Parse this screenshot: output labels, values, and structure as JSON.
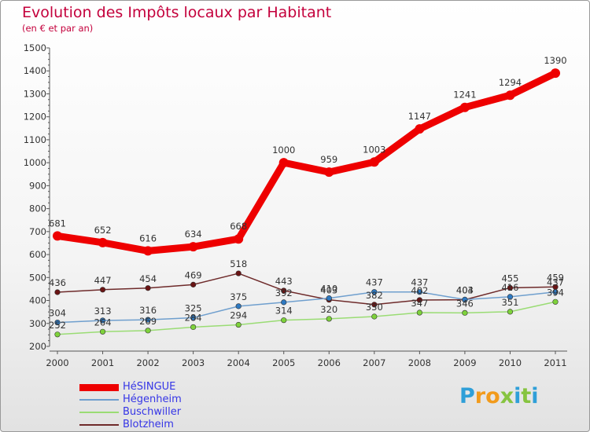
{
  "title": "Evolution des Impôts locaux par Habitant",
  "subtitle": "(en € et par an)",
  "brand": "Proxiti",
  "chart_data": {
    "type": "line",
    "title": "Evolution des Impôts locaux par Habitant",
    "subtitle": "(en € et par an)",
    "xlabel": "",
    "ylabel": "",
    "ylim": [
      200,
      1500
    ],
    "yticks": [
      200,
      300,
      400,
      500,
      600,
      700,
      800,
      900,
      1000,
      1100,
      1200,
      1300,
      1400,
      1500
    ],
    "grid": false,
    "legend": "bottom-left",
    "categories": [
      "2000",
      "2001",
      "2002",
      "2003",
      "2004",
      "2005",
      "2006",
      "2007",
      "2008",
      "2009",
      "2010",
      "2011"
    ],
    "series": [
      {
        "name": "HéSINGUE",
        "color": "#ee0000",
        "marker": "#ee0000",
        "values": [
          681,
          652,
          616,
          634,
          668,
          1000,
          959,
          1003,
          1147,
          1241,
          1294,
          1390
        ]
      },
      {
        "name": "Hégenheim",
        "color": "#6f9fce",
        "marker": "#2e79c1",
        "values": [
          304,
          313,
          316,
          325,
          375,
          392,
          410,
          437,
          437,
          404,
          416,
          437
        ]
      },
      {
        "name": "Buschwiller",
        "color": "#9adc74",
        "marker": "#7ed23b",
        "values": [
          252,
          264,
          269,
          284,
          294,
          314,
          320,
          330,
          347,
          346,
          351,
          394
        ]
      },
      {
        "name": "Blotzheim",
        "color": "#6e2a2a",
        "marker": "#6a1414",
        "values": [
          436,
          447,
          454,
          469,
          518,
          443,
          403,
          382,
          402,
          403,
          455,
          459
        ]
      }
    ]
  }
}
